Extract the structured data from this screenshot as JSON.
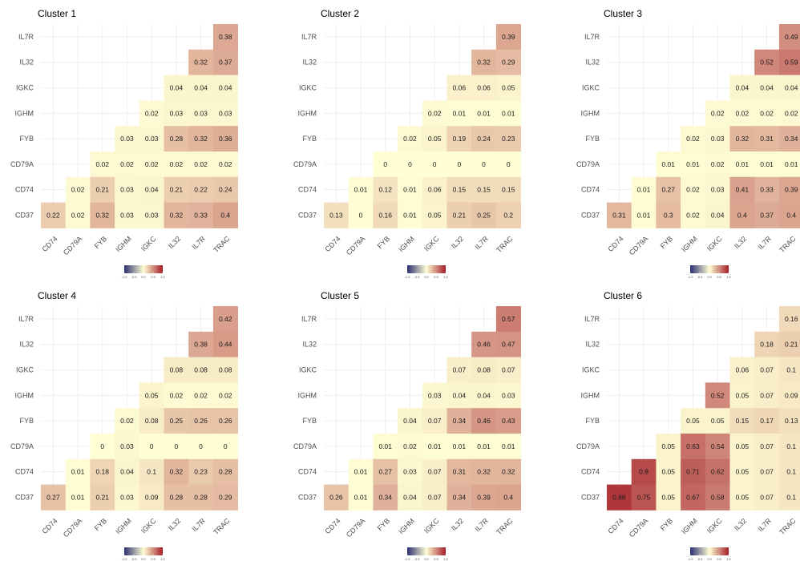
{
  "chart_data": {
    "type": "heatmap",
    "genes": [
      "CD74",
      "CD79A",
      "FYB",
      "IGHM",
      "IGKC",
      "IL32",
      "IL7R",
      "TRAC"
    ],
    "x_tick_labels": [
      "CD74",
      "CD79A",
      "FYB",
      "IGHM",
      "IGKC",
      "IL32",
      "IL7R",
      "TRAC"
    ],
    "y_tick_labels": [
      "IL7R",
      "IL32",
      "IGKC",
      "IGHM",
      "FYB",
      "CD79A",
      "CD74",
      "CD37"
    ],
    "legend": {
      "scale": "diverging",
      "range": [
        -1.0,
        1.0
      ],
      "ticks": [
        "-1.0",
        "-0.5",
        "0.0",
        "0.5",
        "1.0"
      ],
      "colors": {
        "low": "#2b2d72",
        "mid": "#fffed5",
        "high": "#a41c27"
      }
    },
    "panels": [
      {
        "title": "Cluster 1",
        "rows": {
          "IL7R": [
            "0.38"
          ],
          "IL32": [
            "0.32",
            "0.37"
          ],
          "IGKC": [
            "0.04",
            "0.04",
            "0.04"
          ],
          "IGHM": [
            "0.02",
            "0.03",
            "0.03",
            "0.03"
          ],
          "FYB": [
            "0.03",
            "0.03",
            "0.28",
            "0.32",
            "0.36"
          ],
          "CD79A": [
            "0.02",
            "0.02",
            "0.02",
            "0.02",
            "0.02",
            "0.02"
          ],
          "CD74": [
            "0.02",
            "0.21",
            "0.03",
            "0.04",
            "0.21",
            "0.22",
            "0.24"
          ],
          "CD37": [
            "0.22",
            "0.02",
            "0.32",
            "0.03",
            "0.03",
            "0.32",
            "0.33",
            "0.4"
          ]
        }
      },
      {
        "title": "Cluster 2",
        "rows": {
          "IL7R": [
            "0.39"
          ],
          "IL32": [
            "0.32",
            "0.29"
          ],
          "IGKC": [
            "0.06",
            "0.06",
            "0.05"
          ],
          "IGHM": [
            "0.02",
            "0.01",
            "0.01",
            "0.01"
          ],
          "FYB": [
            "0.02",
            "0.05",
            "0.19",
            "0.24",
            "0.23"
          ],
          "CD79A": [
            "0",
            "0",
            "0",
            "0",
            "0",
            "0"
          ],
          "CD74": [
            "0.01",
            "0.12",
            "0.01",
            "0.06",
            "0.15",
            "0.15",
            "0.15"
          ],
          "CD37": [
            "0.13",
            "0",
            "0.16",
            "0.01",
            "0.05",
            "0.21",
            "0.25",
            "0.2"
          ]
        }
      },
      {
        "title": "Cluster 3",
        "rows": {
          "IL7R": [
            "0.49"
          ],
          "IL32": [
            "0.52",
            "0.59"
          ],
          "IGKC": [
            "0.04",
            "0.04",
            "0.04"
          ],
          "IGHM": [
            "0.02",
            "0.02",
            "0.02",
            "0.02"
          ],
          "FYB": [
            "0.02",
            "0.03",
            "0.32",
            "0.31",
            "0.34"
          ],
          "CD79A": [
            "0.01",
            "0.01",
            "0.02",
            "0.01",
            "0.01",
            "0.01"
          ],
          "CD74": [
            "0.01",
            "0.27",
            "0.02",
            "0.03",
            "0.41",
            "0.33",
            "0.39"
          ],
          "CD37": [
            "0.31",
            "0.01",
            "0.3",
            "0.02",
            "0.04",
            "0.4",
            "0.37",
            "0.4"
          ]
        }
      },
      {
        "title": "Cluster 4",
        "rows": {
          "IL7R": [
            "0.42"
          ],
          "IL32": [
            "0.38",
            "0.44"
          ],
          "IGKC": [
            "0.08",
            "0.08",
            "0.08"
          ],
          "IGHM": [
            "0.05",
            "0.02",
            "0.02",
            "0.02"
          ],
          "FYB": [
            "0.02",
            "0.08",
            "0.25",
            "0.26",
            "0.26"
          ],
          "CD79A": [
            "0",
            "0.03",
            "0",
            "0",
            "0",
            "0"
          ],
          "CD74": [
            "0.01",
            "0.18",
            "0.04",
            "0.1",
            "0.32",
            "0.23",
            "0.28"
          ],
          "CD37": [
            "0.27",
            "0.01",
            "0.21",
            "0.03",
            "0.09",
            "0.28",
            "0.28",
            "0.29"
          ]
        }
      },
      {
        "title": "Cluster 5",
        "rows": {
          "IL7R": [
            "0.57"
          ],
          "IL32": [
            "0.46",
            "0.47"
          ],
          "IGKC": [
            "0.07",
            "0.08",
            "0.07"
          ],
          "IGHM": [
            "0.03",
            "0.04",
            "0.04",
            "0.03"
          ],
          "FYB": [
            "0.04",
            "0.07",
            "0.34",
            "0.46",
            "0.43"
          ],
          "CD79A": [
            "0.01",
            "0.02",
            "0.01",
            "0.01",
            "0.01",
            "0.01"
          ],
          "CD74": [
            "0.01",
            "0.27",
            "0.03",
            "0.07",
            "0.31",
            "0.32",
            "0.32"
          ],
          "CD37": [
            "0.26",
            "0.01",
            "0.34",
            "0.04",
            "0.07",
            "0.34",
            "0.39",
            "0.4"
          ]
        }
      },
      {
        "title": "Cluster 6",
        "rows": {
          "IL7R": [
            "0.16"
          ],
          "IL32": [
            "0.18",
            "0.21"
          ],
          "IGKC": [
            "0.06",
            "0.07",
            "0.1"
          ],
          "IGHM": [
            "0.52",
            "0.05",
            "0.07",
            "0.09"
          ],
          "FYB": [
            "0.05",
            "0.05",
            "0.15",
            "0.17",
            "0.13"
          ],
          "CD79A": [
            "0.05",
            "0.63",
            "0.54",
            "0.05",
            "0.07",
            "0.1"
          ],
          "CD74": [
            "0.8",
            "0.05",
            "0.71",
            "0.62",
            "0.05",
            "0.07",
            "0.1"
          ],
          "CD37": [
            "0.88",
            "0.75",
            "0.05",
            "0.67",
            "0.58",
            "0.05",
            "0.07",
            "0.1"
          ]
        }
      }
    ]
  }
}
